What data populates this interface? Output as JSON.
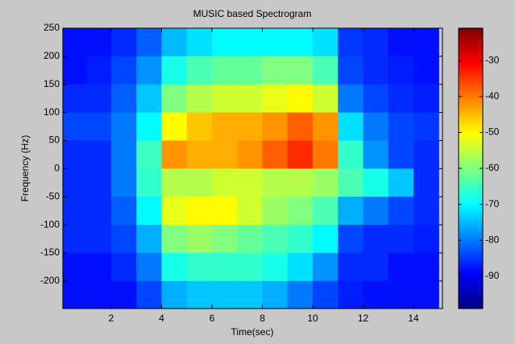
{
  "chart_data": {
    "type": "heatmap",
    "title": "MUSIC based Spectrogram",
    "x_label": "Time(sec)",
    "y_label": "Frequency (Hz)",
    "x": [
      0.5,
      1.5,
      2.5,
      3.5,
      4.5,
      5.5,
      6.5,
      7.5,
      8.5,
      9.5,
      10.5,
      11.5,
      12.5,
      13.5,
      14.5
    ],
    "y": [
      225,
      175,
      125,
      75,
      25,
      -25,
      -75,
      -125,
      -175,
      -225
    ],
    "z": [
      [
        -88,
        -88,
        -86,
        -82,
        -75,
        -72,
        -70,
        -70,
        -70,
        -70,
        -72,
        -85,
        -86,
        -88,
        -88
      ],
      [
        -88,
        -87,
        -84,
        -78,
        -68,
        -64,
        -62,
        -62,
        -60,
        -60,
        -64,
        -84,
        -86,
        -87,
        -88
      ],
      [
        -86,
        -86,
        -82,
        -74,
        -60,
        -56,
        -54,
        -54,
        -52,
        -50,
        -54,
        -80,
        -84,
        -86,
        -87
      ],
      [
        -84,
        -84,
        -80,
        -70,
        -50,
        -46,
        -44,
        -44,
        -42,
        -38,
        -42,
        -72,
        -80,
        -84,
        -85
      ],
      [
        -86,
        -86,
        -80,
        -65,
        -42,
        -44,
        -44,
        -42,
        -38,
        -34,
        -40,
        -66,
        -78,
        -84,
        -86
      ],
      [
        -86,
        -86,
        -80,
        -66,
        -56,
        -56,
        -54,
        -54,
        -56,
        -56,
        -58,
        -64,
        -68,
        -74,
        -86
      ],
      [
        -86,
        -86,
        -82,
        -70,
        -52,
        -50,
        -50,
        -54,
        -58,
        -60,
        -64,
        -76,
        -80,
        -84,
        -86
      ],
      [
        -86,
        -86,
        -84,
        -76,
        -60,
        -58,
        -60,
        -62,
        -64,
        -66,
        -70,
        -84,
        -86,
        -86,
        -87
      ],
      [
        -88,
        -88,
        -86,
        -80,
        -68,
        -66,
        -66,
        -66,
        -68,
        -72,
        -78,
        -86,
        -86,
        -88,
        -88
      ],
      [
        -88,
        -88,
        -88,
        -84,
        -76,
        -74,
        -74,
        -74,
        -76,
        -80,
        -84,
        -87,
        -88,
        -88,
        -88
      ]
    ],
    "colormap": "jet",
    "xlim": [
      0.08,
      15.15
    ],
    "xticks": [
      2,
      4,
      6,
      8,
      10,
      12,
      14
    ],
    "ylim": [
      -249,
      250
    ],
    "yticks": [
      -200,
      -150,
      -100,
      -50,
      0,
      50,
      100,
      150,
      200,
      250
    ],
    "clim": [
      -99,
      -21
    ],
    "cticks": [
      -90,
      -80,
      -70,
      -60,
      -50,
      -40,
      -30
    ]
  }
}
